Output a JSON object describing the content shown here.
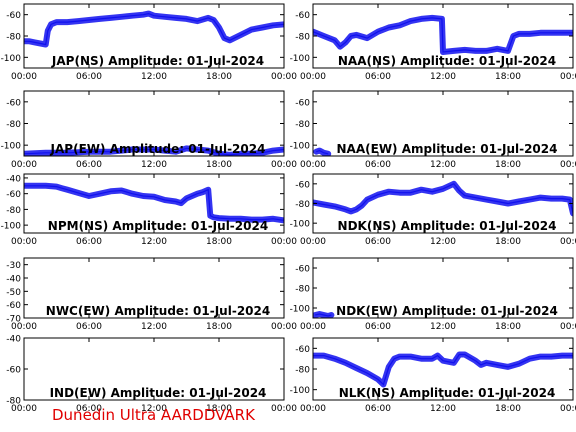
{
  "footer_text": "Dunedin Ultra AARDDVARK",
  "colors": {
    "trace": "#1010ee",
    "axis": "#000000",
    "footer": "#e00000"
  },
  "chart_data": [
    {
      "type": "line",
      "title": "JAP(NS) Amplitude: 01-Jul-2024",
      "x_ticks": [
        "00:00",
        "06:00",
        "12:00",
        "18:00",
        "00:00"
      ],
      "y_ticks": [
        "-100",
        "-80",
        "-60"
      ],
      "ylim": [
        -110,
        -50
      ],
      "series": [
        {
          "x": [
            0,
            0.5,
            1,
            2,
            2.2,
            2.5,
            3,
            4,
            5,
            6,
            7,
            8,
            9,
            10,
            11,
            11.5,
            12,
            13,
            14,
            15,
            16,
            17,
            17.5,
            18,
            18.5,
            19,
            20,
            21,
            22,
            23,
            24
          ],
          "y": [
            -85,
            -85,
            -86,
            -88,
            -75,
            -69,
            -67,
            -67,
            -66,
            -65,
            -64,
            -63,
            -62,
            -61,
            -60,
            -59,
            -61,
            -62,
            -63,
            -64,
            -66,
            -63,
            -65,
            -72,
            -82,
            -84,
            -79,
            -74,
            -72,
            -70,
            -69
          ]
        }
      ]
    },
    {
      "type": "line",
      "title": "NAA(NS) Amplitude: 01-Jul-2024",
      "x_ticks": [
        "00:00",
        "06:00",
        "12:00",
        "18:00",
        "00:00"
      ],
      "y_ticks": [
        "-100",
        "-80",
        "-60"
      ],
      "ylim": [
        -110,
        -50
      ],
      "series": [
        {
          "x": [
            0,
            1,
            2,
            2.5,
            3,
            3.5,
            4,
            5,
            6,
            7,
            8,
            9,
            10,
            11,
            11.9,
            12,
            13,
            14,
            15,
            16,
            17,
            18,
            18.5,
            19,
            20,
            21,
            22,
            23,
            24
          ],
          "y": [
            -76,
            -80,
            -84,
            -90,
            -86,
            -80,
            -79,
            -82,
            -76,
            -72,
            -70,
            -66,
            -64,
            -63,
            -64,
            -95,
            -94,
            -93,
            -94,
            -94,
            -92,
            -94,
            -80,
            -78,
            -78,
            -77,
            -77,
            -77,
            -77
          ]
        }
      ]
    },
    {
      "type": "line",
      "title": "JAP(EW) Amplitude: 01-Jul-2024",
      "x_ticks": [
        "00:00",
        "06:00",
        "12:00",
        "18:00",
        "00:00"
      ],
      "y_ticks": [
        "-100",
        "-80",
        "-60"
      ],
      "ylim": [
        -110,
        -50
      ],
      "series": [
        {
          "x": [
            0,
            2,
            4,
            6,
            8,
            9,
            10,
            11,
            12,
            13,
            14,
            15,
            16,
            17,
            18,
            19,
            20,
            21,
            22,
            23,
            24
          ],
          "y": [
            -108,
            -107,
            -107,
            -106,
            -106,
            -105,
            -104,
            -104,
            -104,
            -105,
            -106,
            -103,
            -104,
            -105,
            -108,
            -109,
            -108,
            -108,
            -107,
            -105,
            -104
          ]
        }
      ]
    },
    {
      "type": "line",
      "title": "NAA(EW) Amplitude: 01-Jul-2024",
      "x_ticks": [
        "00:00",
        "06:00",
        "12:00",
        "18:00",
        "00:00"
      ],
      "y_ticks": [
        "-100",
        "-80",
        "-60"
      ],
      "ylim": [
        -110,
        -50
      ],
      "series": [
        {
          "x": [
            0.3,
            0.6,
            1.0,
            1.4
          ],
          "y": [
            -106,
            -105,
            -107,
            -108
          ]
        }
      ]
    },
    {
      "type": "line",
      "title": "NPM(NS) Amplitude: 01-Jul-2024",
      "x_ticks": [
        "00:00",
        "06:00",
        "12:00",
        "18:00",
        "00:00"
      ],
      "y_ticks": [
        "-100",
        "-80",
        "-60",
        "-40"
      ],
      "ylim": [
        -110,
        -35
      ],
      "series": [
        {
          "x": [
            0,
            1,
            2,
            3,
            3.5,
            4,
            5,
            6,
            7,
            8,
            9,
            10,
            11,
            12,
            13,
            14,
            14.5,
            15,
            16,
            16.5,
            17,
            17.2,
            17.5,
            18,
            19,
            20,
            21,
            22,
            23,
            24
          ],
          "y": [
            -50,
            -50,
            -50,
            -51,
            -53,
            -55,
            -59,
            -63,
            -60,
            -57,
            -56,
            -60,
            -63,
            -64,
            -68,
            -70,
            -72,
            -66,
            -60,
            -58,
            -55,
            -88,
            -90,
            -91,
            -92,
            -92,
            -93,
            -93,
            -92,
            -94
          ]
        }
      ]
    },
    {
      "type": "line",
      "title": "NDK(NS) Amplitude: 01-Jul-2024",
      "x_ticks": [
        "00:00",
        "06:00",
        "12:00",
        "18:00",
        "00:00"
      ],
      "y_ticks": [
        "-100",
        "-80",
        "-60"
      ],
      "ylim": [
        -110,
        -50
      ],
      "series": [
        {
          "x": [
            0,
            1,
            2,
            3,
            3.5,
            4,
            4.5,
            5,
            6,
            7,
            8,
            9,
            10,
            11,
            12,
            13,
            13.5,
            14,
            15,
            16,
            17,
            18,
            19,
            20,
            21,
            22,
            23,
            23.7,
            24
          ],
          "y": [
            -79,
            -81,
            -83,
            -86,
            -88,
            -86,
            -82,
            -76,
            -71,
            -68,
            -69,
            -69,
            -66,
            -68,
            -65,
            -60,
            -67,
            -72,
            -74,
            -76,
            -78,
            -80,
            -78,
            -76,
            -74,
            -75,
            -75,
            -76,
            -90
          ]
        }
      ]
    },
    {
      "type": "line",
      "title": "NWC(EW) Amplitude: 01-Jul-2024",
      "x_ticks": [
        "00:00",
        "06:00",
        "12:00",
        "18:00",
        "00:00"
      ],
      "y_ticks": [
        "-70",
        "-60",
        "-50",
        "-40",
        "-30"
      ],
      "ylim": [
        -70,
        -25
      ],
      "series": []
    },
    {
      "type": "line",
      "title": "NDK(EW) Amplitude: 01-Jul-2024",
      "x_ticks": [
        "00:00",
        "06:00",
        "12:00",
        "18:00",
        "00:00"
      ],
      "y_ticks": [
        "-100",
        "-80",
        "-60"
      ],
      "ylim": [
        -110,
        -50
      ],
      "series": [
        {
          "x": [
            0.2,
            0.6,
            1.0,
            1.4,
            1.7
          ],
          "y": [
            -107,
            -106,
            -107,
            -108,
            -107
          ]
        }
      ]
    },
    {
      "type": "line",
      "title": "IND(EW) Amplitude: 01-Jul-2024",
      "x_ticks": [
        "00:00",
        "06:00",
        "12:00",
        "18:00",
        "00:00"
      ],
      "y_ticks": [
        "-80",
        "-60",
        "-40"
      ],
      "ylim": [
        -80,
        -40
      ],
      "series": []
    },
    {
      "type": "line",
      "title": "NLK(NS) Amplitude: 01-Jul-2024",
      "x_ticks": [
        "00:00",
        "06:00",
        "12:00",
        "18:00",
        "00:00"
      ],
      "y_ticks": [
        "-100",
        "-80",
        "-60"
      ],
      "ylim": [
        -110,
        -50
      ],
      "series": [
        {
          "x": [
            0,
            1,
            2,
            3,
            4,
            5,
            6,
            6.5,
            7,
            7.5,
            8,
            9,
            10,
            11,
            11.5,
            12,
            13,
            13.5,
            14,
            15,
            15.5,
            16,
            17,
            18,
            19,
            20,
            21,
            22,
            23,
            24
          ],
          "y": [
            -67,
            -67,
            -70,
            -74,
            -79,
            -84,
            -90,
            -95,
            -78,
            -70,
            -68,
            -68,
            -70,
            -70,
            -67,
            -72,
            -74,
            -66,
            -66,
            -72,
            -76,
            -74,
            -76,
            -78,
            -75,
            -70,
            -68,
            -68,
            -67,
            -67
          ]
        }
      ]
    }
  ]
}
